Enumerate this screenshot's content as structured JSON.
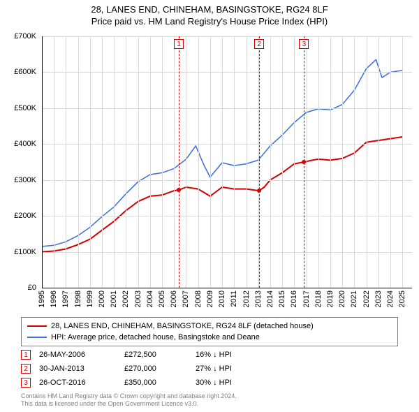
{
  "title_line1": "28, LANES END, CHINEHAM, BASINGSTOKE, RG24 8LF",
  "title_line2": "Price paid vs. HM Land Registry's House Price Index (HPI)",
  "title_fontsize": 13,
  "chart": {
    "type": "line",
    "background_color": "#ffffff",
    "grid_color": "#d9d9d9",
    "axis_color": "#000000",
    "xlim": [
      1995,
      2025.8
    ],
    "ylim": [
      0,
      700000
    ],
    "ytick_step": 100000,
    "yticks": [
      0,
      100000,
      200000,
      300000,
      400000,
      500000,
      600000,
      700000
    ],
    "ytick_labels": [
      "£0",
      "£100K",
      "£200K",
      "£300K",
      "£400K",
      "£500K",
      "£600K",
      "£700K"
    ],
    "ytick_fontsize": 11,
    "xticks": [
      1995,
      1996,
      1997,
      1998,
      1999,
      2000,
      2001,
      2002,
      2003,
      2004,
      2005,
      2006,
      2007,
      2008,
      2009,
      2010,
      2011,
      2012,
      2013,
      2014,
      2015,
      2016,
      2017,
      2018,
      2019,
      2020,
      2021,
      2022,
      2023,
      2024,
      2025
    ],
    "xtick_fontsize": 11,
    "series": {
      "property": {
        "label": "28, LANES END, CHINEHAM, BASINGSTOKE, RG24 8LF (detached house)",
        "color": "#d40000",
        "line_width": 2,
        "data": [
          [
            1995.0,
            100000
          ],
          [
            1996.0,
            102000
          ],
          [
            1997.0,
            108000
          ],
          [
            1998.0,
            120000
          ],
          [
            1999.0,
            135000
          ],
          [
            2000.0,
            160000
          ],
          [
            2001.0,
            185000
          ],
          [
            2002.0,
            215000
          ],
          [
            2003.0,
            240000
          ],
          [
            2004.0,
            255000
          ],
          [
            2005.0,
            258000
          ],
          [
            2006.0,
            270000
          ],
          [
            2006.4,
            272500
          ],
          [
            2007.0,
            280000
          ],
          [
            2008.0,
            275000
          ],
          [
            2009.0,
            255000
          ],
          [
            2010.0,
            280000
          ],
          [
            2011.0,
            275000
          ],
          [
            2012.0,
            275000
          ],
          [
            2013.08,
            270000
          ],
          [
            2013.5,
            280000
          ],
          [
            2014.0,
            300000
          ],
          [
            2015.0,
            320000
          ],
          [
            2016.0,
            345000
          ],
          [
            2016.82,
            350000
          ],
          [
            2017.5,
            355000
          ],
          [
            2018.0,
            358000
          ],
          [
            2019.0,
            355000
          ],
          [
            2020.0,
            360000
          ],
          [
            2021.0,
            375000
          ],
          [
            2022.0,
            405000
          ],
          [
            2023.0,
            410000
          ],
          [
            2024.0,
            415000
          ],
          [
            2025.0,
            420000
          ]
        ]
      },
      "hpi": {
        "label": "HPI: Average price, detached house, Basingstoke and Deane",
        "color": "#3a6fd8",
        "line_width": 1.5,
        "data": [
          [
            1995.0,
            115000
          ],
          [
            1996.0,
            118000
          ],
          [
            1997.0,
            128000
          ],
          [
            1998.0,
            145000
          ],
          [
            1999.0,
            168000
          ],
          [
            2000.0,
            198000
          ],
          [
            2001.0,
            225000
          ],
          [
            2002.0,
            262000
          ],
          [
            2003.0,
            295000
          ],
          [
            2004.0,
            315000
          ],
          [
            2005.0,
            320000
          ],
          [
            2006.0,
            332000
          ],
          [
            2007.0,
            358000
          ],
          [
            2007.8,
            395000
          ],
          [
            2008.5,
            340000
          ],
          [
            2009.0,
            308000
          ],
          [
            2010.0,
            348000
          ],
          [
            2011.0,
            340000
          ],
          [
            2012.0,
            345000
          ],
          [
            2013.0,
            355000
          ],
          [
            2014.0,
            395000
          ],
          [
            2015.0,
            425000
          ],
          [
            2016.0,
            460000
          ],
          [
            2017.0,
            488000
          ],
          [
            2018.0,
            498000
          ],
          [
            2019.0,
            495000
          ],
          [
            2020.0,
            510000
          ],
          [
            2021.0,
            550000
          ],
          [
            2022.0,
            610000
          ],
          [
            2022.8,
            635000
          ],
          [
            2023.3,
            585000
          ],
          [
            2024.0,
            600000
          ],
          [
            2025.0,
            605000
          ]
        ]
      }
    },
    "events": [
      {
        "n": "1",
        "year": 2006.4,
        "date": "26-MAY-2006",
        "price": "£272,500",
        "diff": "16% ↓ HPI",
        "price_value": 272500
      },
      {
        "n": "2",
        "year": 2013.08,
        "date": "30-JAN-2013",
        "price": "£270,000",
        "diff": "27% ↓ HPI",
        "price_value": 270000
      },
      {
        "n": "3",
        "year": 2016.82,
        "date": "26-OCT-2016",
        "price": "£350,000",
        "diff": "30% ↓ HPI",
        "price_value": 350000
      }
    ],
    "event_marker_color": "#d40000",
    "event_line_color": "#d40000"
  },
  "legend": {
    "border_color": "#808080",
    "fontsize": 11
  },
  "footer_line1": "Contains HM Land Registry data © Crown copyright and database right 2024.",
  "footer_line2": "This data is licensed under the Open Government Licence v3.0.",
  "footer_color": "#808080",
  "footer_fontsize": 9
}
